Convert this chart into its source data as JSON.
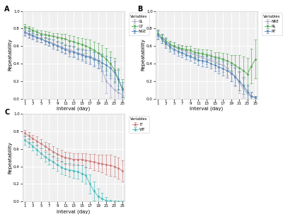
{
  "x": [
    1,
    2,
    3,
    4,
    5,
    6,
    7,
    8,
    9,
    10,
    11,
    12,
    13,
    14,
    15,
    16,
    17,
    18,
    19,
    20,
    21,
    22,
    23,
    24,
    25
  ],
  "panel_A": {
    "GL": {
      "y": [
        0.75,
        0.73,
        0.71,
        0.69,
        0.68,
        0.66,
        0.65,
        0.63,
        0.61,
        0.59,
        0.57,
        0.56,
        0.54,
        0.52,
        0.51,
        0.49,
        0.48,
        0.46,
        0.44,
        0.32,
        0.2,
        0.15,
        0.1,
        0.07,
        0.04
      ],
      "err": [
        0.04,
        0.04,
        0.04,
        0.04,
        0.04,
        0.04,
        0.04,
        0.04,
        0.05,
        0.05,
        0.05,
        0.05,
        0.06,
        0.06,
        0.06,
        0.07,
        0.07,
        0.08,
        0.09,
        0.12,
        0.14,
        0.14,
        0.13,
        0.08,
        0.04
      ],
      "color": "#aaaacc",
      "label": "GL"
    },
    "GT": {
      "y": [
        0.82,
        0.8,
        0.78,
        0.76,
        0.74,
        0.73,
        0.72,
        0.71,
        0.7,
        0.69,
        0.68,
        0.66,
        0.65,
        0.63,
        0.62,
        0.6,
        0.58,
        0.55,
        0.52,
        0.49,
        0.45,
        0.4,
        0.33,
        0.22,
        0.12
      ],
      "err": [
        0.03,
        0.03,
        0.03,
        0.03,
        0.04,
        0.04,
        0.04,
        0.04,
        0.05,
        0.05,
        0.06,
        0.06,
        0.06,
        0.07,
        0.07,
        0.08,
        0.09,
        0.1,
        0.11,
        0.12,
        0.13,
        0.14,
        0.13,
        0.12,
        0.1
      ],
      "color": "#55aa55",
      "label": "GT"
    },
    "NGE": {
      "y": [
        0.76,
        0.74,
        0.72,
        0.7,
        0.68,
        0.66,
        0.64,
        0.62,
        0.6,
        0.58,
        0.56,
        0.54,
        0.53,
        0.51,
        0.5,
        0.48,
        0.47,
        0.45,
        0.43,
        0.41,
        0.38,
        0.35,
        0.3,
        0.22,
        0.1
      ],
      "err": [
        0.04,
        0.04,
        0.04,
        0.04,
        0.04,
        0.04,
        0.04,
        0.05,
        0.05,
        0.05,
        0.05,
        0.06,
        0.06,
        0.06,
        0.07,
        0.07,
        0.08,
        0.08,
        0.09,
        0.1,
        0.11,
        0.12,
        0.12,
        0.11,
        0.09
      ],
      "color": "#5588bb",
      "label": "NGE"
    }
  },
  "panel_B": {
    "NRE": {
      "y": [
        0.72,
        0.68,
        0.64,
        0.61,
        0.59,
        0.57,
        0.55,
        0.54,
        0.52,
        0.5,
        0.49,
        0.47,
        0.45,
        0.44,
        0.42,
        0.4,
        0.38,
        0.35,
        0.3,
        0.25,
        0.18,
        0.12,
        0.05,
        0.02,
        0.01
      ],
      "err": [
        0.05,
        0.05,
        0.05,
        0.05,
        0.05,
        0.05,
        0.05,
        0.05,
        0.05,
        0.05,
        0.06,
        0.06,
        0.06,
        0.07,
        0.07,
        0.08,
        0.08,
        0.09,
        0.1,
        0.11,
        0.12,
        0.11,
        0.09,
        0.05,
        0.02
      ],
      "color": "#aaaacc",
      "label": "NRE"
    },
    "RL": {
      "y": [
        0.75,
        0.7,
        0.66,
        0.62,
        0.6,
        0.58,
        0.57,
        0.56,
        0.55,
        0.53,
        0.52,
        0.51,
        0.5,
        0.49,
        0.47,
        0.46,
        0.45,
        0.43,
        0.41,
        0.38,
        0.35,
        0.32,
        0.28,
        0.37,
        0.45
      ],
      "err": [
        0.04,
        0.04,
        0.04,
        0.04,
        0.04,
        0.04,
        0.04,
        0.04,
        0.05,
        0.05,
        0.05,
        0.05,
        0.06,
        0.06,
        0.06,
        0.07,
        0.07,
        0.08,
        0.09,
        0.12,
        0.15,
        0.16,
        0.18,
        0.2,
        0.22
      ],
      "color": "#55aa55",
      "label": "RL"
    },
    "RT": {
      "y": [
        0.73,
        0.68,
        0.63,
        0.59,
        0.56,
        0.54,
        0.52,
        0.5,
        0.48,
        0.46,
        0.44,
        0.43,
        0.42,
        0.4,
        0.38,
        0.36,
        0.34,
        0.32,
        0.29,
        0.25,
        0.2,
        0.15,
        0.08,
        0.03,
        0.01
      ],
      "err": [
        0.05,
        0.05,
        0.05,
        0.05,
        0.05,
        0.05,
        0.05,
        0.05,
        0.05,
        0.05,
        0.06,
        0.06,
        0.06,
        0.06,
        0.07,
        0.07,
        0.08,
        0.08,
        0.09,
        0.1,
        0.11,
        0.1,
        0.08,
        0.05,
        0.02
      ],
      "color": "#5588bb",
      "label": "RT"
    }
  },
  "panel_C": {
    "IT": {
      "y": [
        0.78,
        0.75,
        0.72,
        0.69,
        0.66,
        0.63,
        0.6,
        0.57,
        0.54,
        0.52,
        0.5,
        0.49,
        0.48,
        0.48,
        0.48,
        0.47,
        0.46,
        0.45,
        0.44,
        0.43,
        0.42,
        0.41,
        0.4,
        0.38,
        0.35
      ],
      "err": [
        0.04,
        0.04,
        0.04,
        0.05,
        0.05,
        0.05,
        0.06,
        0.06,
        0.07,
        0.07,
        0.07,
        0.07,
        0.07,
        0.07,
        0.07,
        0.08,
        0.08,
        0.09,
        0.09,
        0.1,
        0.11,
        0.12,
        0.12,
        0.12,
        0.12
      ],
      "color": "#cc7777",
      "label": "IT"
    },
    "WT": {
      "y": [
        0.7,
        0.67,
        0.63,
        0.59,
        0.55,
        0.51,
        0.48,
        0.45,
        0.42,
        0.39,
        0.37,
        0.36,
        0.35,
        0.34,
        0.32,
        0.3,
        0.2,
        0.12,
        0.06,
        0.03,
        0.01,
        0.0,
        0.0,
        0.0,
        0.0
      ],
      "err": [
        0.05,
        0.05,
        0.05,
        0.06,
        0.06,
        0.06,
        0.06,
        0.07,
        0.07,
        0.07,
        0.07,
        0.08,
        0.08,
        0.08,
        0.09,
        0.1,
        0.11,
        0.11,
        0.09,
        0.07,
        0.04,
        0.02,
        0.01,
        0.0,
        0.0
      ],
      "color": "#44bbbb",
      "label": "WT"
    }
  },
  "xlabel": "Interval (day)",
  "ylabel": "Repeatability",
  "ylim": [
    0.0,
    1.0
  ],
  "xticks": [
    1,
    3,
    5,
    7,
    9,
    11,
    13,
    15,
    17,
    19,
    21,
    23,
    25
  ],
  "yticks": [
    0.0,
    0.2,
    0.4,
    0.6,
    0.8,
    1.0
  ],
  "bg_color": "#f0f0f0",
  "legend_title": "Variables"
}
